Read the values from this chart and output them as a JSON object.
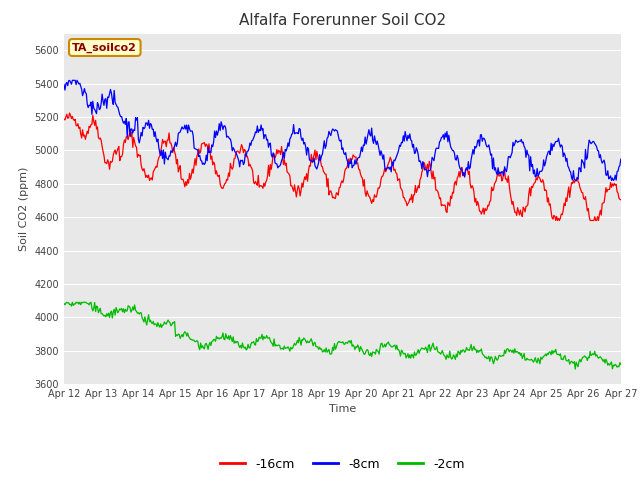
{
  "title": "Alfalfa Forerunner Soil CO2",
  "ylabel": "Soil CO2 (ppm)",
  "xlabel": "Time",
  "sensor_label": "TA_soilco2",
  "x_tick_labels": [
    "Apr 12",
    "Apr 13",
    "Apr 14",
    "Apr 15",
    "Apr 16",
    "Apr 17",
    "Apr 18",
    "Apr 19",
    "Apr 20",
    "Apr 21",
    "Apr 22",
    "Apr 23",
    "Apr 24",
    "Apr 25",
    "Apr 26",
    "Apr 27"
  ],
  "ylim": [
    3600,
    5700
  ],
  "yticks": [
    3600,
    3800,
    4000,
    4200,
    4400,
    4600,
    4800,
    5000,
    5200,
    5400,
    5600
  ],
  "colors": {
    "red": "#ff0000",
    "blue": "#0000ff",
    "green": "#00bb00",
    "background": "#e8e8e8"
  },
  "legend_labels": [
    "-16cm",
    "-8cm",
    "-2cm"
  ],
  "n_points": 600,
  "title_fontsize": 11,
  "tick_fontsize": 7,
  "label_fontsize": 8
}
